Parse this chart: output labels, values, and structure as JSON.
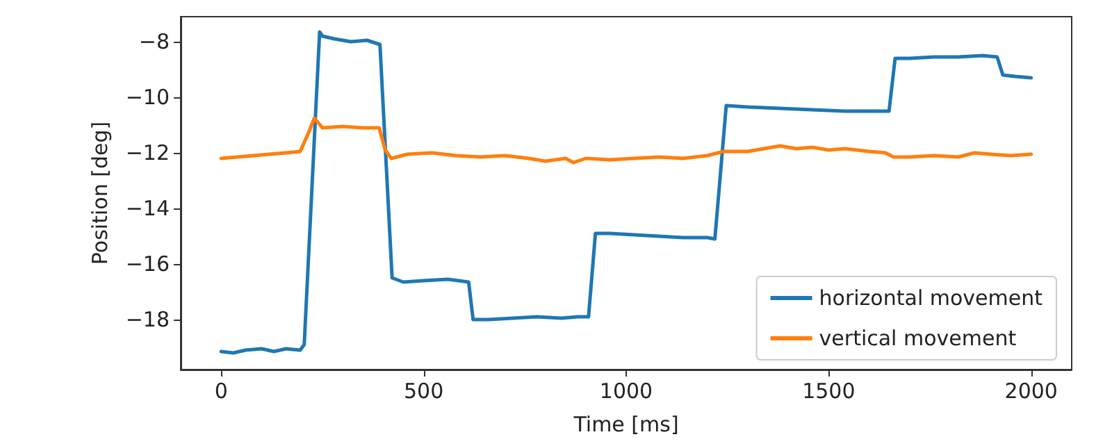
{
  "chart_data": {
    "type": "line",
    "xlabel": "Time [ms]",
    "ylabel": "Position [deg]",
    "xlim": [
      -100,
      2100
    ],
    "xticks": [
      0,
      500,
      1000,
      1500,
      2000
    ],
    "ylim": [
      -19.8,
      -7.1
    ],
    "yticks": [
      -18,
      -16,
      -14,
      -12,
      -10,
      -8
    ],
    "grid": false,
    "legend": "bottom right",
    "marker": "none",
    "line_style": "solid",
    "series": [
      {
        "name": "horizontal movement",
        "color": "#1f77b4",
        "x": [
          0,
          30,
          60,
          100,
          130,
          160,
          195,
          205,
          243,
          250,
          280,
          320,
          360,
          392,
          422,
          450,
          500,
          560,
          611,
          622,
          660,
          720,
          780,
          840,
          880,
          907,
          924,
          960,
          1020,
          1080,
          1140,
          1200,
          1219,
          1247,
          1300,
          1380,
          1460,
          1540,
          1600,
          1649,
          1664,
          1700,
          1760,
          1820,
          1880,
          1916,
          1930,
          1960,
          2000
        ],
        "values": [
          -19.15,
          -19.2,
          -19.1,
          -19.05,
          -19.15,
          -19.05,
          -19.1,
          -18.9,
          -7.65,
          -7.8,
          -7.9,
          -8.0,
          -7.95,
          -8.1,
          -16.5,
          -16.65,
          -16.6,
          -16.55,
          -16.65,
          -18.0,
          -18.0,
          -17.95,
          -17.9,
          -17.95,
          -17.9,
          -17.9,
          -14.9,
          -14.9,
          -14.95,
          -15.0,
          -15.05,
          -15.05,
          -15.1,
          -10.3,
          -10.35,
          -10.4,
          -10.45,
          -10.5,
          -10.5,
          -10.5,
          -8.6,
          -8.6,
          -8.55,
          -8.55,
          -8.5,
          -8.55,
          -9.2,
          -9.25,
          -9.3
        ]
      },
      {
        "name": "vertical movement",
        "color": "#ff7f0e",
        "x": [
          0,
          40,
          80,
          120,
          160,
          195,
          215,
          230,
          250,
          300,
          350,
          390,
          405,
          420,
          460,
          520,
          580,
          640,
          700,
          760,
          800,
          850,
          870,
          900,
          960,
          1020,
          1080,
          1140,
          1200,
          1240,
          1300,
          1340,
          1380,
          1420,
          1460,
          1500,
          1540,
          1600,
          1640,
          1660,
          1700,
          1760,
          1820,
          1860,
          1900,
          1950,
          2000
        ],
        "values": [
          -12.2,
          -12.15,
          -12.1,
          -12.05,
          -12.0,
          -11.95,
          -11.3,
          -10.75,
          -11.1,
          -11.05,
          -11.1,
          -11.1,
          -11.9,
          -12.2,
          -12.05,
          -12.0,
          -12.1,
          -12.15,
          -12.1,
          -12.2,
          -12.3,
          -12.2,
          -12.35,
          -12.2,
          -12.25,
          -12.2,
          -12.15,
          -12.2,
          -12.1,
          -11.95,
          -11.95,
          -11.85,
          -11.75,
          -11.85,
          -11.8,
          -11.9,
          -11.85,
          -11.95,
          -12.0,
          -12.15,
          -12.15,
          -12.1,
          -12.15,
          -12.0,
          -12.05,
          -12.1,
          -12.05
        ]
      }
    ]
  }
}
